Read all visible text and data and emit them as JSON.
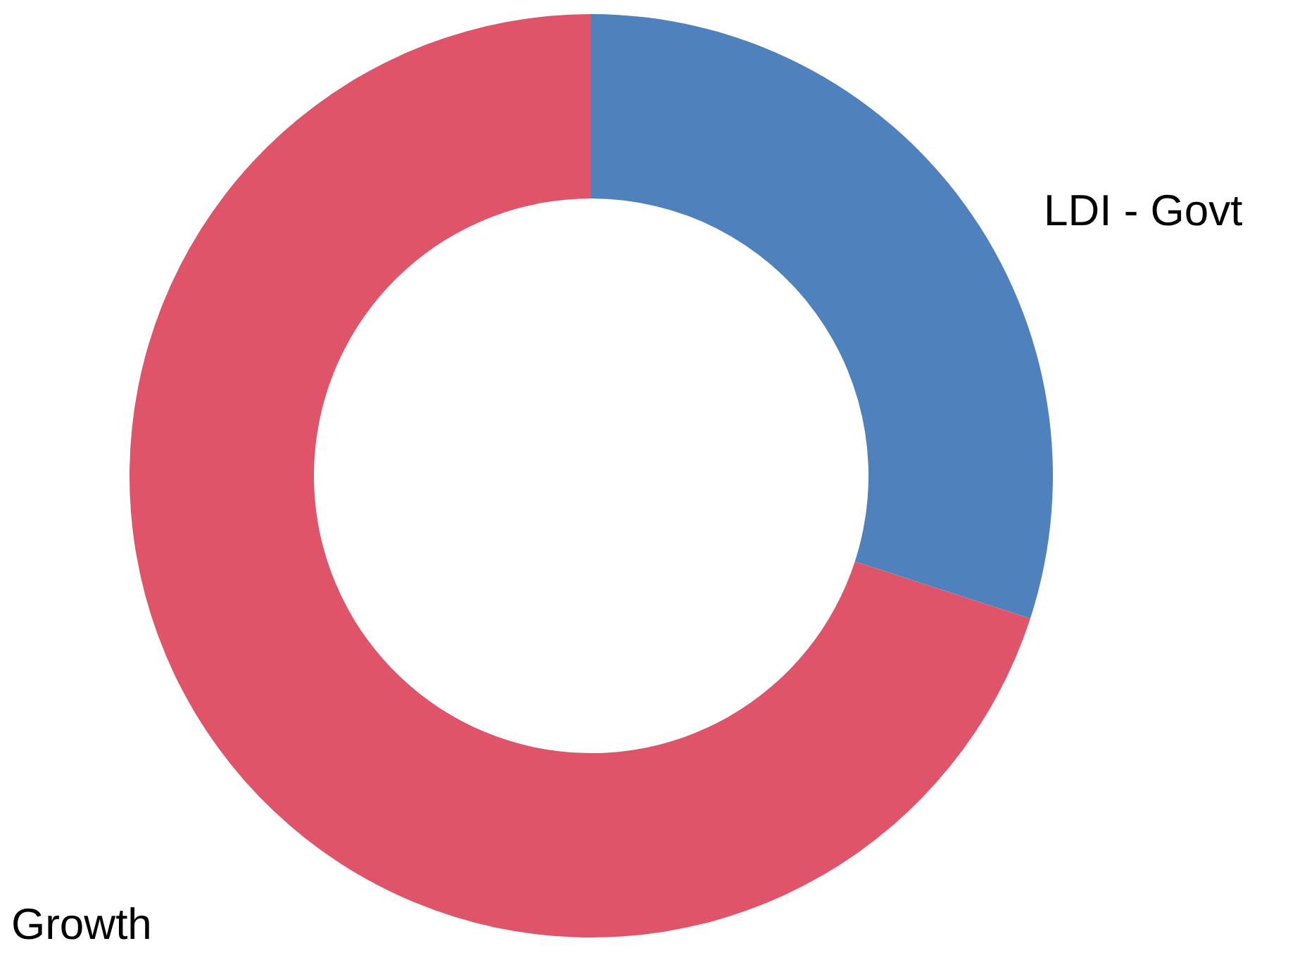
{
  "chart_data": {
    "type": "donut",
    "categories": [
      "LDI - Govt",
      "Growth"
    ],
    "values": [
      30,
      70
    ],
    "colors": [
      "#4f81bd",
      "#e0546a"
    ]
  }
}
